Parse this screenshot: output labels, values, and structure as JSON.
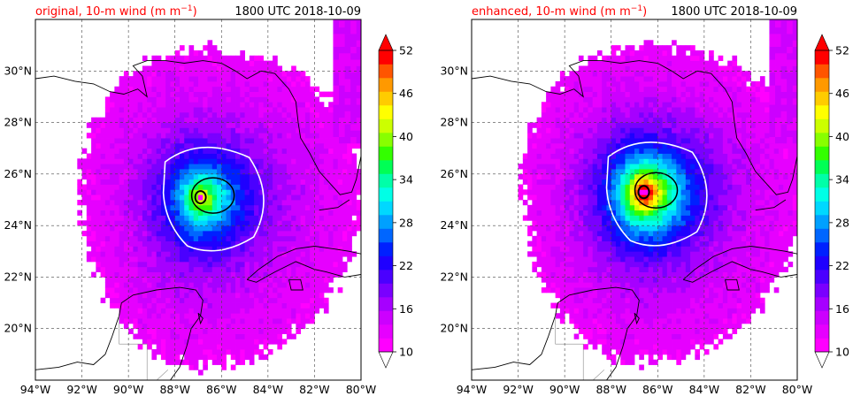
{
  "chart_data": [
    {
      "type": "heatmap",
      "title_left": "original, 10-m wind (m m",
      "title_left_exp": "−1",
      "title_left_close": ")",
      "title_right": "1800 UTC 2018-10-09",
      "x_ticks": [
        "94°W",
        "92°W",
        "90°W",
        "88°W",
        "86°W",
        "84°W",
        "82°W",
        "80°W"
      ],
      "y_ticks": [
        "30°N",
        "28°N",
        "26°N",
        "24°N",
        "22°N",
        "20°N"
      ],
      "x_values": [
        -94,
        -92,
        -90,
        -88,
        -86,
        -84,
        -82,
        -80
      ],
      "y_values": [
        30,
        28,
        26,
        24,
        22,
        20
      ],
      "xlim": [
        -94,
        -80
      ],
      "ylim": [
        18,
        32
      ],
      "storm_center": {
        "lon": -86.9,
        "lat": 25.1
      },
      "max_wind_band": 40,
      "grid": true
    },
    {
      "type": "heatmap",
      "title_left": "enhanced, 10-m wind (m m",
      "title_left_exp": "−1",
      "title_left_close": ")",
      "title_right": "1800 UTC 2018-10-09",
      "x_ticks": [
        "94°W",
        "92°W",
        "90°W",
        "88°W",
        "86°W",
        "84°W",
        "82°W",
        "80°W"
      ],
      "y_ticks": [
        "30°N",
        "28°N",
        "26°N",
        "24°N",
        "22°N",
        "20°N"
      ],
      "x_values": [
        -94,
        -92,
        -90,
        -88,
        -86,
        -84,
        -82,
        -80
      ],
      "y_values": [
        30,
        28,
        26,
        24,
        22,
        20
      ],
      "xlim": [
        -94,
        -80
      ],
      "ylim": [
        18,
        32
      ],
      "storm_center": {
        "lon": -86.6,
        "lat": 25.3
      },
      "max_wind_band": 52,
      "grid": true
    }
  ],
  "colorbar": {
    "ticks": [
      "52",
      "46",
      "40",
      "34",
      "28",
      "22",
      "16",
      "10"
    ],
    "levels": [
      10,
      12,
      14,
      16,
      18,
      20,
      22,
      24,
      26,
      28,
      30,
      32,
      34,
      36,
      38,
      40,
      42,
      44,
      46,
      48,
      50,
      52
    ],
    "colors": [
      "#ff00ff",
      "#e600ff",
      "#cc00ff",
      "#a600ff",
      "#7a00ff",
      "#4a00ff",
      "#1f00ff",
      "#0020ff",
      "#0066ff",
      "#00a0ff",
      "#00d8ff",
      "#00ffe6",
      "#00ffa8",
      "#00ff55",
      "#33ff00",
      "#88ff00",
      "#ccff00",
      "#ffff00",
      "#ffcc00",
      "#ff9900",
      "#ff5500",
      "#ff0000"
    ]
  }
}
